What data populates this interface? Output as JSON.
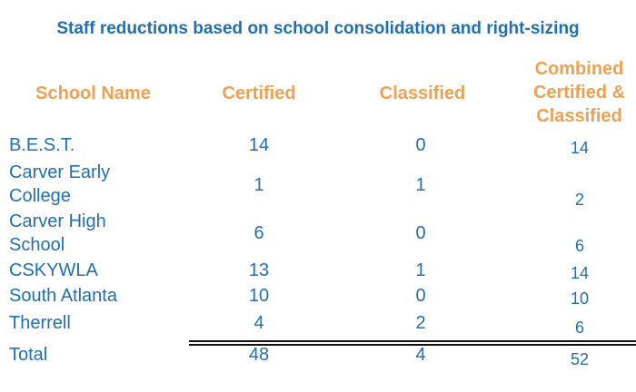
{
  "title": "Staff reductions based on school consolidation and right-sizing",
  "headers": {
    "school": "School Name",
    "certified": "Certified",
    "classified": "Classified",
    "combined": "Combined Certified & Classified"
  },
  "rows": [
    {
      "name": "B.E.S.T.",
      "certified": "14",
      "classified": "0",
      "combined": "14"
    },
    {
      "name": "Carver Early College",
      "certified": "1",
      "classified": "1",
      "combined": "2"
    },
    {
      "name": "Carver High School",
      "certified": "6",
      "classified": "0",
      "combined": "6"
    },
    {
      "name": "CSKYWLA",
      "certified": "13",
      "classified": "1",
      "combined": "14"
    },
    {
      "name": "South Atlanta",
      "certified": "10",
      "classified": "0",
      "combined": "10"
    },
    {
      "name": "Therrell",
      "certified": "4",
      "classified": "2",
      "combined": "6"
    }
  ],
  "total": {
    "name": "Total",
    "certified": "48",
    "classified": "4",
    "combined": "52"
  },
  "colors": {
    "title": "#1f6fb5",
    "header": "#f0a050",
    "body_text": "#1f6fb5",
    "rule": "#111111"
  }
}
